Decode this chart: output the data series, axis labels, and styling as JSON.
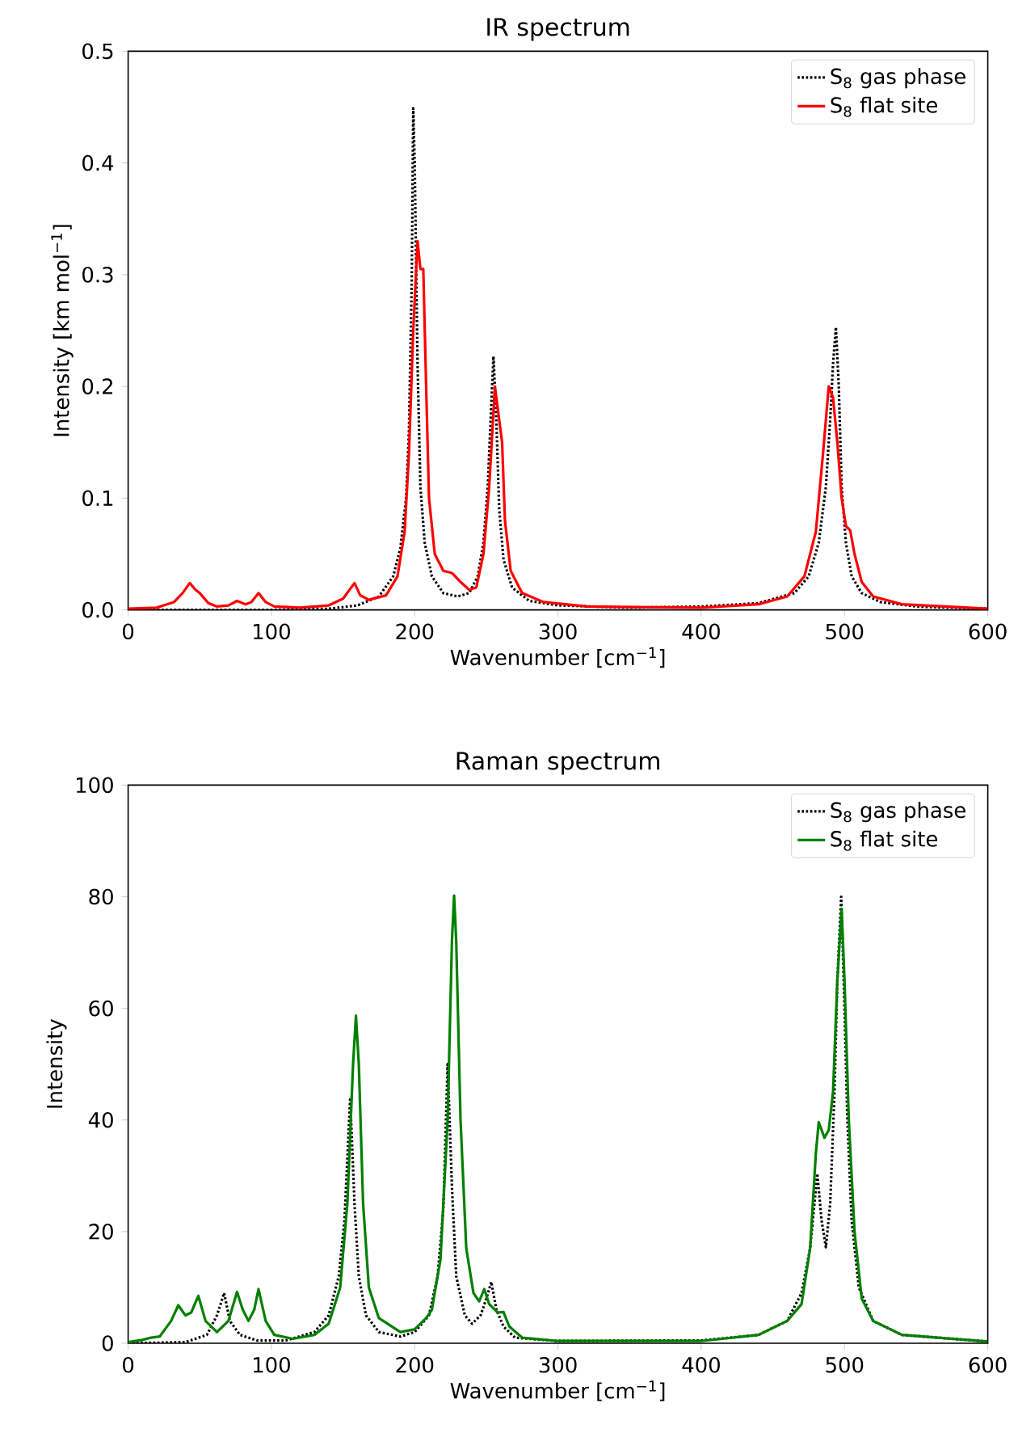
{
  "chart_data": [
    {
      "type": "line",
      "title": "IR spectrum",
      "xlabel": "Wavenumber [cm$^{−1}$]",
      "ylabel": "Intensity [km mol$^{−1}$]",
      "xlim": [
        0,
        600
      ],
      "ylim": [
        0,
        0.5
      ],
      "xticks": [
        0,
        100,
        200,
        300,
        400,
        500,
        600
      ],
      "yticks": [
        {
          "value": 0,
          "label": "0.0"
        },
        0.1,
        0.2,
        0.3,
        0.4,
        0.5
      ],
      "legend": "top right",
      "grid": false,
      "series": [
        {
          "name": "S$_{8}$ gas phase",
          "color": "#000000",
          "line_style": "dotted",
          "x": [
            0,
            100,
            140,
            160,
            175,
            185,
            190,
            194,
            196,
            198,
            199,
            200,
            202,
            204,
            207,
            212,
            220,
            230,
            238,
            244,
            248,
            251,
            253,
            255,
            257,
            259,
            262,
            268,
            280,
            300,
            350,
            400,
            440,
            465,
            475,
            482,
            487,
            490,
            492,
            494,
            496,
            498,
            501,
            505,
            512,
            525,
            550,
            600
          ],
          "values": [
            0,
            0,
            0.001,
            0.004,
            0.012,
            0.03,
            0.055,
            0.1,
            0.16,
            0.3,
            0.449,
            0.4,
            0.22,
            0.11,
            0.06,
            0.03,
            0.015,
            0.012,
            0.015,
            0.03,
            0.06,
            0.11,
            0.17,
            0.227,
            0.17,
            0.09,
            0.045,
            0.02,
            0.008,
            0.004,
            0.002,
            0.003,
            0.006,
            0.015,
            0.03,
            0.06,
            0.11,
            0.17,
            0.22,
            0.253,
            0.2,
            0.11,
            0.06,
            0.03,
            0.015,
            0.007,
            0.003,
            0.001
          ]
        },
        {
          "name": "S$_{8}$ flat site",
          "color": "#ff0000",
          "line_style": "solid",
          "x": [
            0,
            20,
            32,
            38,
            43,
            47,
            50,
            56,
            62,
            70,
            76,
            82,
            86,
            91,
            96,
            102,
            120,
            140,
            150,
            158,
            162,
            168,
            180,
            188,
            193,
            196,
            199,
            202,
            204,
            206,
            208,
            210,
            214,
            220,
            226,
            232,
            238,
            243,
            248,
            252,
            256,
            258,
            261,
            263,
            267,
            275,
            290,
            320,
            400,
            440,
            460,
            472,
            480,
            485,
            489,
            492,
            495,
            498,
            501,
            504,
            507,
            512,
            520,
            540,
            600
          ],
          "values": [
            0.001,
            0.002,
            0.007,
            0.015,
            0.024,
            0.018,
            0.015,
            0.006,
            0.003,
            0.004,
            0.008,
            0.005,
            0.007,
            0.015,
            0.007,
            0.003,
            0.002,
            0.004,
            0.01,
            0.024,
            0.013,
            0.009,
            0.013,
            0.03,
            0.07,
            0.14,
            0.25,
            0.33,
            0.305,
            0.305,
            0.2,
            0.1,
            0.05,
            0.035,
            0.033,
            0.025,
            0.018,
            0.02,
            0.05,
            0.11,
            0.2,
            0.18,
            0.15,
            0.08,
            0.035,
            0.015,
            0.007,
            0.003,
            0.002,
            0.005,
            0.012,
            0.03,
            0.07,
            0.14,
            0.2,
            0.19,
            0.15,
            0.1,
            0.075,
            0.071,
            0.05,
            0.025,
            0.012,
            0.005,
            0.001
          ]
        }
      ]
    },
    {
      "type": "line",
      "title": "Raman spectrum",
      "xlabel": "Wavenumber [cm$^{−1}$]",
      "ylabel": "Intensity",
      "xlim": [
        0,
        600
      ],
      "ylim": [
        0,
        100
      ],
      "xticks": [
        0,
        100,
        200,
        300,
        400,
        500,
        600
      ],
      "yticks": [
        0,
        20,
        40,
        60,
        80,
        100
      ],
      "legend": "top right",
      "grid": false,
      "series": [
        {
          "name": "S$_{8}$ gas phase",
          "color": "#000000",
          "line_style": "dotted",
          "x": [
            0,
            40,
            55,
            62,
            67,
            71,
            78,
            90,
            110,
            130,
            140,
            147,
            151,
            155,
            158,
            161,
            166,
            175,
            190,
            200,
            210,
            216,
            220,
            223,
            226,
            229,
            235,
            240,
            246,
            250,
            253.5,
            257,
            262,
            270,
            300,
            400,
            440,
            460,
            470,
            476,
            481,
            484,
            487,
            490,
            493,
            495,
            497.7,
            500,
            502,
            505,
            510,
            520,
            540,
            600
          ],
          "values": [
            0,
            0.2,
            1.5,
            5,
            9,
            4,
            1.5,
            0.5,
            0.5,
            2,
            5,
            12,
            22,
            44,
            25,
            12,
            5,
            2,
            1.2,
            2,
            5,
            12,
            24,
            50,
            28,
            12,
            5,
            3.5,
            5,
            8,
            11,
            6,
            3,
            1,
            0.4,
            0.5,
            1.5,
            4,
            9,
            17,
            30.4,
            22,
            17.2,
            25,
            45,
            65,
            80,
            60,
            40,
            22,
            10,
            4,
            1.5,
            0.3
          ]
        },
        {
          "name": "S$_{8}$ flat site",
          "color": "#008000",
          "line_style": "solid",
          "x": [
            0,
            10,
            16,
            22,
            30,
            35,
            40,
            44,
            49,
            54,
            62,
            70,
            76,
            80,
            84,
            88,
            91,
            96,
            102,
            115,
            130,
            140,
            148,
            153,
            157,
            159,
            161,
            164,
            168,
            175,
            190,
            200,
            208,
            212,
            218,
            223,
            226,
            227.5,
            229,
            232,
            236,
            241,
            245,
            248.6,
            252,
            258,
            262,
            266,
            275,
            300,
            400,
            440,
            460,
            470,
            476,
            480,
            482,
            486,
            489,
            492,
            495,
            498,
            500,
            503,
            507,
            512,
            520,
            540,
            600
          ],
          "values": [
            0.2,
            0.6,
            1,
            1.2,
            4,
            6.8,
            5,
            5.5,
            8.5,
            4,
            2,
            4,
            9.2,
            6,
            4,
            6,
            9.7,
            4,
            1.5,
            0.8,
            1.5,
            3.5,
            10,
            25,
            50,
            58.7,
            50,
            25,
            10,
            4.5,
            2,
            2.5,
            4.5,
            6,
            15,
            40,
            72,
            80.2,
            72,
            40,
            17,
            9,
            7.5,
            9.7,
            7,
            5.5,
            5.6,
            3,
            1,
            0.4,
            0.4,
            1.5,
            4,
            7,
            17,
            34,
            39.6,
            36.8,
            38.2,
            45,
            65,
            77.8,
            65,
            40,
            20,
            8,
            4,
            1.5,
            0.3
          ]
        }
      ]
    }
  ]
}
